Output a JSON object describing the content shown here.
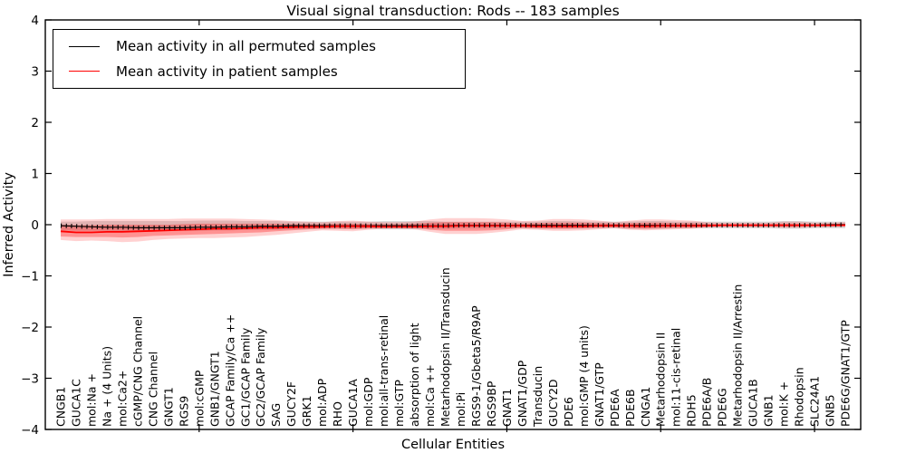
{
  "chart_data": {
    "type": "line",
    "title": "Visual signal transduction: Rods -- 183 samples",
    "xlabel": "Cellular Entities",
    "ylabel": "Inferred Activity",
    "ylim": [
      -4,
      4
    ],
    "xlim": [
      0,
      53
    ],
    "grid": false,
    "yticks": [
      4,
      3,
      2,
      1,
      0,
      -1,
      -2,
      -3,
      -4
    ],
    "ytick_labels": [
      "4",
      "3",
      "2",
      "1",
      "0",
      "−1",
      "−2",
      "−3",
      "−4"
    ],
    "x_major_ticks": [
      10,
      20,
      30,
      40,
      50
    ],
    "legend": {
      "position": "upper left",
      "entries": [
        {
          "label": "Mean activity in all permuted samples",
          "color": "#000000"
        },
        {
          "label": "Mean activity in patient samples",
          "color": "#ff0000"
        }
      ]
    },
    "categories": [
      "CNGB1",
      "GUCA1C",
      "mol:Na +",
      "Na + (4 Units)",
      "mol:Ca2+",
      "cGMP/CNG Channel",
      "CNG Channel",
      "GNGT1",
      "RGS9",
      "mol:cGMP",
      "GNB1/GNGT1",
      "GCAP Family/Ca ++",
      "GC1/GCAP Family",
      "GC2/GCAP Family",
      "SAG",
      "GUCY2F",
      "GRK1",
      "mol:ADP",
      "RHO",
      "GUCA1A",
      "mol:GDP",
      "mol:all-trans-retinal",
      "mol:GTP",
      "absorption of light",
      "mol:Ca ++",
      "Metarhodopsin II/Transducin",
      "mol:Pi",
      "RGS9-1/Gbeta5/R9AP",
      "RGS9BP",
      "GNAT1",
      "GNAT1/GDP",
      "Transducin",
      "GUCY2D",
      "PDE6",
      "mol:GMP (4 units)",
      "GNAT1/GTP",
      "PDE6A",
      "PDE6B",
      "CNGA1",
      "Metarhodopsin II",
      "mol:11-cis-retinal",
      "RDH5",
      "PDE6A/B",
      "PDE6G",
      "Metarhodopsin II/Arrestin",
      "GUCA1B",
      "GNB1",
      "mol:K +",
      "Rhodopsin",
      "SLC24A1",
      "GNB5",
      "PDE6G/GNAT1/GTP"
    ],
    "series": [
      {
        "name": "Mean activity in all permuted samples",
        "color": "#000000",
        "markers": true,
        "values": [
          -0.02,
          -0.03,
          -0.04,
          -0.05,
          -0.05,
          -0.06,
          -0.06,
          -0.06,
          -0.06,
          -0.05,
          -0.05,
          -0.04,
          -0.04,
          -0.03,
          -0.03,
          -0.02,
          -0.02,
          -0.02,
          -0.02,
          -0.02,
          -0.02,
          -0.02,
          -0.02,
          -0.02,
          -0.02,
          -0.02,
          -0.01,
          -0.01,
          -0.01,
          -0.01,
          -0.01,
          -0.01,
          -0.01,
          -0.01,
          -0.01,
          -0.01,
          -0.01,
          -0.01,
          -0.01,
          -0.01,
          -0.01,
          -0.01,
          -0.01,
          -0.01,
          -0.01,
          -0.01,
          -0.01,
          -0.01,
          -0.01,
          -0.01,
          0.0,
          0.0
        ]
      },
      {
        "name": "Mean activity in patient samples",
        "color": "#ff0000",
        "markers": false,
        "values": [
          -0.13,
          -0.15,
          -0.15,
          -0.14,
          -0.14,
          -0.13,
          -0.12,
          -0.11,
          -0.1,
          -0.09,
          -0.08,
          -0.08,
          -0.07,
          -0.06,
          -0.06,
          -0.05,
          -0.04,
          -0.04,
          -0.03,
          -0.03,
          -0.03,
          -0.04,
          -0.04,
          -0.04,
          -0.03,
          -0.03,
          -0.02,
          -0.02,
          -0.02,
          -0.02,
          -0.02,
          -0.03,
          -0.03,
          -0.03,
          -0.03,
          -0.02,
          -0.02,
          -0.02,
          -0.03,
          -0.02,
          -0.02,
          -0.02,
          -0.02,
          -0.01,
          -0.01,
          -0.01,
          -0.01,
          -0.01,
          -0.01,
          -0.01,
          -0.01,
          -0.01
        ]
      }
    ],
    "bands": [
      {
        "id": "permuted-range",
        "name": "permuted samples range",
        "color": "rgba(125,125,125,0.28)",
        "upper": [
          0.06,
          0.06,
          0.07,
          0.07,
          0.07,
          0.07,
          0.07,
          0.07,
          0.07,
          0.08,
          0.08,
          0.08,
          0.07,
          0.07,
          0.07,
          0.06,
          0.06,
          0.06,
          0.06,
          0.06,
          0.06,
          0.07,
          0.07,
          0.07,
          0.07,
          0.06,
          0.06,
          0.06,
          0.06,
          0.06,
          0.06,
          0.06,
          0.07,
          0.07,
          0.06,
          0.06,
          0.06,
          0.06,
          0.07,
          0.07,
          0.06,
          0.06,
          0.06,
          0.06,
          0.06,
          0.06,
          0.06,
          0.07,
          0.07,
          0.06,
          0.06,
          0.06
        ],
        "lower": [
          -0.11,
          -0.12,
          -0.12,
          -0.12,
          -0.13,
          -0.13,
          -0.13,
          -0.12,
          -0.12,
          -0.12,
          -0.11,
          -0.11,
          -0.1,
          -0.1,
          -0.1,
          -0.09,
          -0.09,
          -0.08,
          -0.08,
          -0.08,
          -0.08,
          -0.09,
          -0.09,
          -0.09,
          -0.08,
          -0.08,
          -0.07,
          -0.07,
          -0.07,
          -0.07,
          -0.07,
          -0.08,
          -0.08,
          -0.08,
          -0.08,
          -0.07,
          -0.07,
          -0.08,
          -0.08,
          -0.08,
          -0.07,
          -0.07,
          -0.07,
          -0.07,
          -0.07,
          -0.07,
          -0.07,
          -0.08,
          -0.08,
          -0.07,
          -0.07,
          -0.07
        ]
      },
      {
        "id": "patient-range",
        "name": "patient samples range",
        "color": "rgba(255,0,0,0.18)",
        "upper": [
          0.1,
          0.1,
          0.1,
          0.11,
          0.11,
          0.11,
          0.11,
          0.11,
          0.12,
          0.12,
          0.12,
          0.12,
          0.11,
          0.1,
          0.09,
          0.07,
          0.06,
          0.05,
          0.07,
          0.08,
          0.06,
          0.05,
          0.05,
          0.06,
          0.1,
          0.13,
          0.13,
          0.13,
          0.12,
          0.1,
          0.07,
          0.08,
          0.11,
          0.11,
          0.1,
          0.08,
          0.05,
          0.08,
          0.1,
          0.1,
          0.09,
          0.08,
          0.05,
          0.04,
          0.04,
          0.04,
          0.04,
          0.06,
          0.06,
          0.04,
          0.04,
          0.05
        ],
        "lower": [
          -0.3,
          -0.32,
          -0.31,
          -0.32,
          -0.34,
          -0.33,
          -0.3,
          -0.28,
          -0.27,
          -0.26,
          -0.26,
          -0.25,
          -0.24,
          -0.22,
          -0.2,
          -0.17,
          -0.14,
          -0.11,
          -0.12,
          -0.13,
          -0.1,
          -0.08,
          -0.08,
          -0.09,
          -0.14,
          -0.18,
          -0.18,
          -0.18,
          -0.16,
          -0.13,
          -0.09,
          -0.1,
          -0.12,
          -0.12,
          -0.11,
          -0.09,
          -0.07,
          -0.1,
          -0.11,
          -0.1,
          -0.09,
          -0.08,
          -0.06,
          -0.05,
          -0.05,
          -0.05,
          -0.05,
          -0.06,
          -0.06,
          -0.05,
          -0.04,
          -0.04
        ]
      },
      {
        "id": "patient-std",
        "name": "patient samples std",
        "color": "rgba(255,0,0,0.30)",
        "upper": [
          0.0,
          -0.01,
          -0.01,
          0.0,
          0.0,
          0.0,
          0.0,
          0.0,
          0.01,
          0.02,
          0.02,
          0.02,
          0.02,
          0.02,
          0.02,
          0.01,
          0.01,
          0.01,
          0.02,
          0.02,
          0.01,
          0.01,
          0.01,
          0.02,
          0.04,
          0.05,
          0.05,
          0.05,
          0.05,
          0.04,
          0.02,
          0.03,
          0.04,
          0.04,
          0.04,
          0.03,
          0.02,
          0.03,
          0.04,
          0.04,
          0.03,
          0.03,
          0.02,
          0.01,
          0.01,
          0.01,
          0.01,
          0.02,
          0.02,
          0.01,
          0.01,
          0.02
        ],
        "lower": [
          -0.23,
          -0.24,
          -0.24,
          -0.24,
          -0.25,
          -0.24,
          -0.22,
          -0.21,
          -0.2,
          -0.19,
          -0.18,
          -0.17,
          -0.16,
          -0.15,
          -0.13,
          -0.11,
          -0.09,
          -0.08,
          -0.08,
          -0.09,
          -0.07,
          -0.06,
          -0.06,
          -0.06,
          -0.1,
          -0.12,
          -0.12,
          -0.12,
          -0.11,
          -0.09,
          -0.06,
          -0.07,
          -0.08,
          -0.08,
          -0.07,
          -0.06,
          -0.05,
          -0.07,
          -0.08,
          -0.07,
          -0.06,
          -0.06,
          -0.04,
          -0.03,
          -0.03,
          -0.03,
          -0.03,
          -0.04,
          -0.04,
          -0.03,
          -0.03,
          -0.03
        ]
      }
    ]
  }
}
